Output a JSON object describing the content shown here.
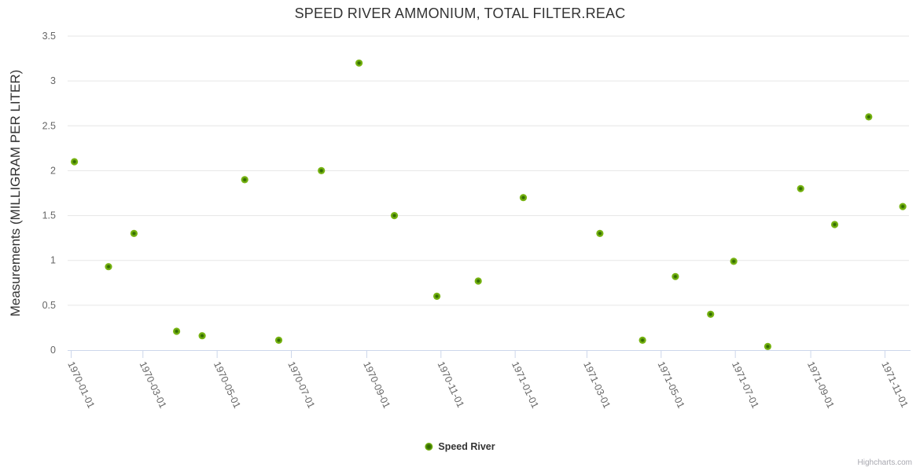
{
  "credit_label": "Highcharts.com",
  "chart_data": {
    "type": "scatter",
    "title": "SPEED RIVER AMMONIUM, TOTAL FILTER.REAC",
    "xlabel": "",
    "ylabel": "Measurements (MILLIGRAM PER LITER)",
    "ylim": [
      0,
      3.5
    ],
    "y_ticks": [
      "0",
      "0.5",
      "1",
      "1.5",
      "2",
      "2.5",
      "3",
      "3.5"
    ],
    "x_tick_labels": [
      "1970-01-01",
      "1970-03-01",
      "1970-05-01",
      "1970-07-01",
      "1970-09-01",
      "1970-11-01",
      "1971-01-01",
      "1971-03-01",
      "1971-05-01",
      "1971-07-01",
      "1971-09-01",
      "1971-11-01"
    ],
    "grid": true,
    "legend_position": "bottom",
    "colors": {
      "marker_outer": "#79b514",
      "marker_mid": "#74b110",
      "marker_inner": "#2c5f01",
      "grid_line": "#e6e6e6",
      "axis_line": "#ccd6eb",
      "axis_label": "#666666",
      "title_color": "#333333",
      "credit_color": "#a7a7af"
    },
    "series": [
      {
        "name": "Speed River",
        "points": [
          {
            "date": "1970-01-04",
            "value": 2.1
          },
          {
            "date": "1970-02-01",
            "value": 0.93
          },
          {
            "date": "1970-02-22",
            "value": 1.3
          },
          {
            "date": "1970-03-29",
            "value": 0.21
          },
          {
            "date": "1970-04-19",
            "value": 0.16
          },
          {
            "date": "1970-05-24",
            "value": 1.9
          },
          {
            "date": "1970-06-21",
            "value": 0.11
          },
          {
            "date": "1970-07-26",
            "value": 2.0
          },
          {
            "date": "1970-08-26",
            "value": 3.2
          },
          {
            "date": "1970-09-24",
            "value": 1.5
          },
          {
            "date": "1970-10-29",
            "value": 0.6
          },
          {
            "date": "1970-12-02",
            "value": 0.77
          },
          {
            "date": "1971-01-08",
            "value": 1.7
          },
          {
            "date": "1971-03-12",
            "value": 1.3
          },
          {
            "date": "1971-04-16",
            "value": 0.11
          },
          {
            "date": "1971-05-13",
            "value": 0.82
          },
          {
            "date": "1971-06-11",
            "value": 0.4
          },
          {
            "date": "1971-06-30",
            "value": 0.99
          },
          {
            "date": "1971-07-28",
            "value": 0.04
          },
          {
            "date": "1971-08-24",
            "value": 1.8
          },
          {
            "date": "1971-09-21",
            "value": 1.4
          },
          {
            "date": "1971-10-19",
            "value": 2.6
          },
          {
            "date": "1971-11-16",
            "value": 1.6
          }
        ]
      }
    ]
  }
}
